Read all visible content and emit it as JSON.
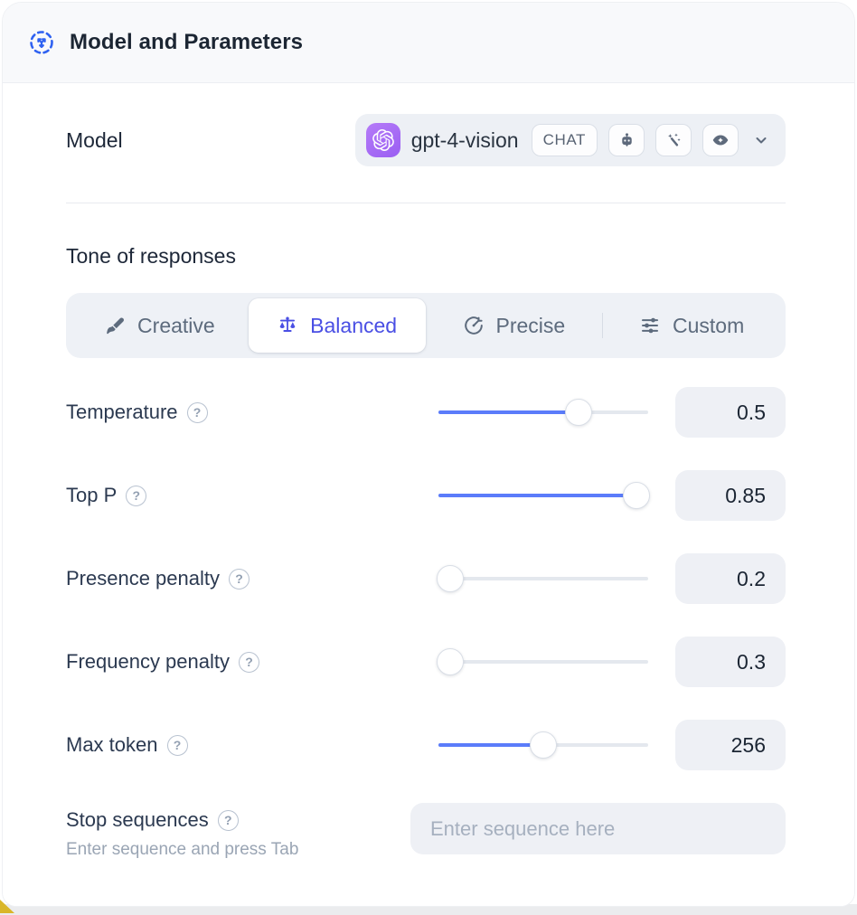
{
  "header": {
    "title": "Model and Parameters",
    "icon": "radial-spread-icon"
  },
  "model_row": {
    "label": "Model",
    "selected_model": "gpt-4-vision",
    "provider_icon": "openai-logo-icon",
    "type_badge": "CHAT",
    "capability_icons": [
      "robot-icon",
      "magic-wand-icon",
      "vision-eye-icon"
    ]
  },
  "tone": {
    "heading": "Tone of responses",
    "options": [
      {
        "label": "Creative",
        "icon": "paintbrush-icon",
        "active": false,
        "divider_before": false
      },
      {
        "label": "Balanced",
        "icon": "balance-scale-icon",
        "active": true,
        "divider_before": false
      },
      {
        "label": "Precise",
        "icon": "target-icon",
        "active": false,
        "divider_before": false
      },
      {
        "label": "Custom",
        "icon": "sliders-icon",
        "active": false,
        "divider_before": true
      }
    ]
  },
  "parameters": [
    {
      "label": "Temperature",
      "value": "0.5",
      "slider_fill": 0.67
    },
    {
      "label": "Top P",
      "value": "0.85",
      "slider_fill": 0.99
    },
    {
      "label": "Presence penalty",
      "value": "0.2",
      "slider_fill": 0.0
    },
    {
      "label": "Frequency penalty",
      "value": "0.3",
      "slider_fill": 0.0
    },
    {
      "label": "Max token",
      "value": "256",
      "slider_fill": 0.5
    }
  ],
  "stop_sequences": {
    "label": "Stop sequences",
    "helper": "Enter sequence and press Tab",
    "placeholder": "Enter sequence here"
  },
  "colors": {
    "accent_blue": "#5b7cfa",
    "active_tab_text": "#4a4fe4",
    "brand_purple": "#9a5ef2",
    "header_bg": "#f8f9fb",
    "field_bg": "#edf0f5",
    "corner_wedge_yellow": "#d9b629"
  }
}
